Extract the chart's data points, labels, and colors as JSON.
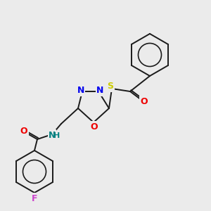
{
  "bg_color": "#ebebeb",
  "bond_color": "#1a1a1a",
  "atom_colors": {
    "N": "#0000ee",
    "O": "#ee0000",
    "S": "#cccc00",
    "F": "#cc44cc",
    "NH": "#008080"
  },
  "figsize": [
    3.0,
    3.0
  ],
  "dpi": 100,
  "lw": 1.4,
  "fontsize": 9
}
